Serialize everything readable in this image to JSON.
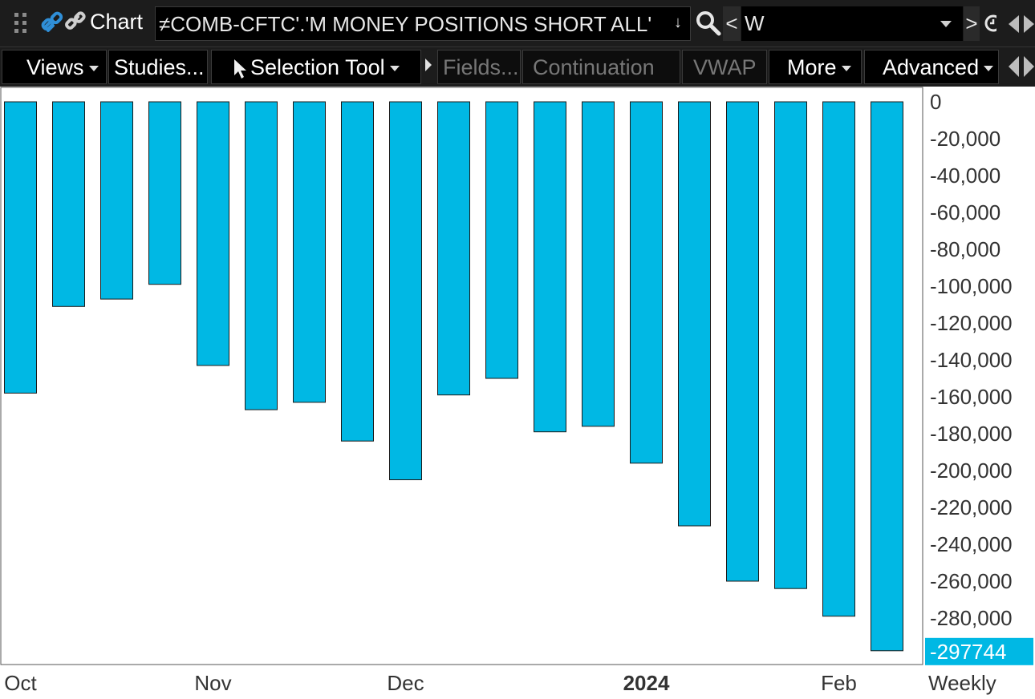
{
  "window": {
    "title": "Chart",
    "symbol": "≠COMB-CFTC'.'M MONEY POSITIONS SHORT ALL'",
    "symbol_arrow": "↓",
    "aggregation": "W",
    "prev_label": "<",
    "next_label": ">"
  },
  "toolbar": {
    "views": "Views",
    "studies": "Studies...",
    "selection_tool": "Selection Tool",
    "fields": "Fields...",
    "continuation": "Continuation",
    "vwap": "VWAP",
    "more": "More",
    "advanced": "Advanced"
  },
  "colors": {
    "bar_fill": "#00b8e4",
    "bar_stroke": "#1a1a1a",
    "last_value_badge": "#00b8e4",
    "chrome_background": "#1c1c1c"
  },
  "chart_data": {
    "type": "bar",
    "interval": "Weekly",
    "series": [
      {
        "values": [
          -158000,
          -111000,
          -107000,
          -99000,
          -143000,
          -167000,
          -163000,
          -184000,
          -205000,
          -159000,
          -150000,
          -179000,
          -176000,
          -196000,
          -230000,
          -260000,
          -264000,
          -279000,
          -297744
        ]
      }
    ],
    "ylim": [
      0,
      -300000
    ],
    "y_ticks": [
      0,
      -20000,
      -40000,
      -60000,
      -80000,
      -100000,
      -120000,
      -140000,
      -160000,
      -180000,
      -200000,
      -220000,
      -240000,
      -260000,
      -280000
    ],
    "y_tick_labels": [
      "0",
      "-20,000",
      "-40,000",
      "-60,000",
      "-80,000",
      "-100,000",
      "-120,000",
      "-140,000",
      "-160,000",
      "-180,000",
      "-200,000",
      "-220,000",
      "-240,000",
      "-260,000",
      "-280,000"
    ],
    "last_value_label": "-297744",
    "x_labels": [
      {
        "text": "Oct",
        "bar_index": 0,
        "bold": false
      },
      {
        "text": "Nov",
        "bar_index": 4,
        "bold": false
      },
      {
        "text": "Dec",
        "bar_index": 8,
        "bold": false
      },
      {
        "text": "2024",
        "bar_index": 13,
        "bold": true
      },
      {
        "text": "Feb",
        "bar_index": 17,
        "bold": false
      }
    ],
    "grid": false,
    "legend": "none"
  }
}
